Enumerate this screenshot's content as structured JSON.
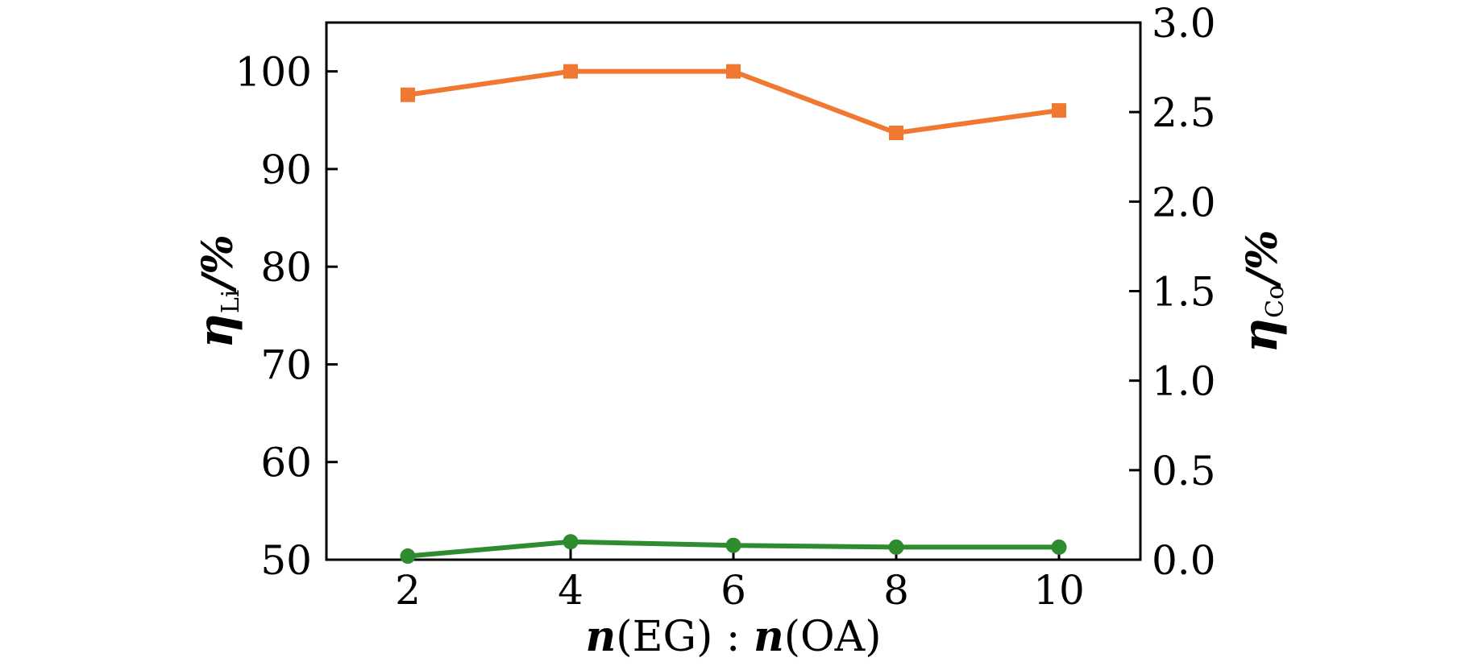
{
  "chart_data": {
    "type": "line",
    "x": [
      2,
      4,
      6,
      8,
      10
    ],
    "xlim": [
      1,
      11
    ],
    "xticks": [
      "2",
      "4",
      "6",
      "8",
      "10"
    ],
    "xlabel": {
      "n1": "n",
      "mid": "(EG) : ",
      "n2": "n",
      "end": "(OA)"
    },
    "left_axis": {
      "ylim": [
        50,
        105
      ],
      "ticks": [
        "50",
        "60",
        "70",
        "80",
        "90",
        "100"
      ],
      "label": {
        "symbol": "η",
        "subscript": "Li",
        "unit": "/%"
      }
    },
    "right_axis": {
      "ylim": [
        0,
        3.0
      ],
      "ticks": [
        "0.0",
        "0.5",
        "1.0",
        "1.5",
        "2.0",
        "2.5",
        "3.0"
      ],
      "label": {
        "symbol": "η",
        "subscript": "Co",
        "unit": "/%"
      }
    },
    "series": [
      {
        "axis": "left",
        "marker": "square",
        "color": "#f07830",
        "values": [
          97.6,
          100.0,
          100.0,
          93.7,
          96.0
        ]
      },
      {
        "axis": "right",
        "marker": "circle",
        "color": "#2e8b2e",
        "values": [
          0.02,
          0.1,
          0.08,
          0.07,
          0.07
        ]
      }
    ],
    "grid": false,
    "legend": "none"
  }
}
